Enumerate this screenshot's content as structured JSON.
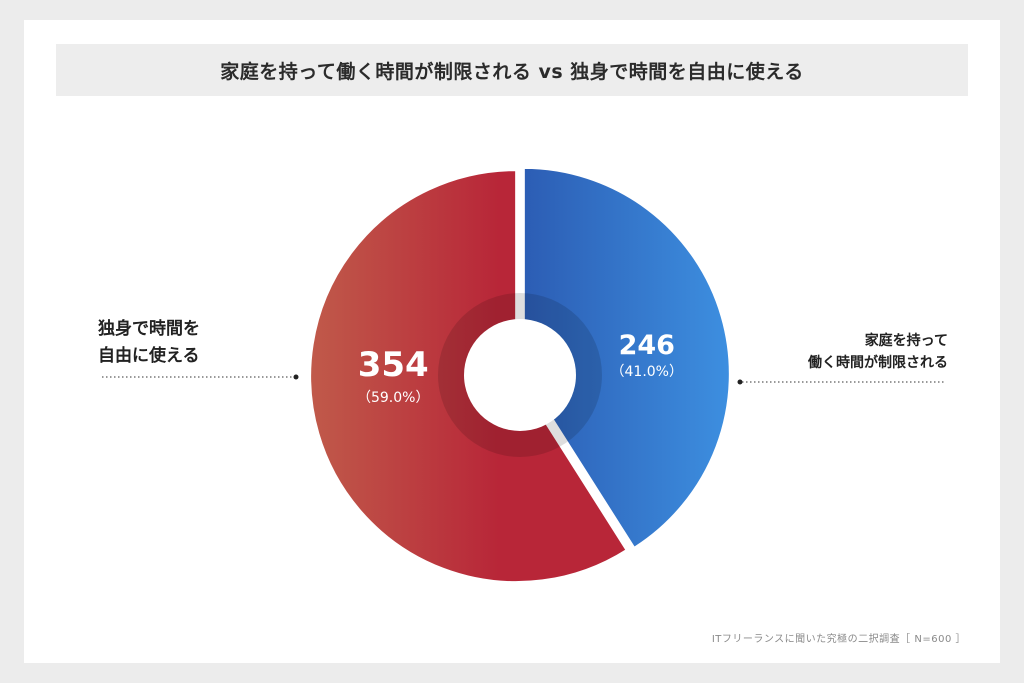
{
  "title": "家庭を持って働く時間が制限される vs 独身で時間を自由に使える",
  "source": "ITフリーランスに聞いた究極の二択調査［ N=600 ］",
  "labels": {
    "left_line1": "独身で時間を",
    "left_line2": "自由に使える",
    "right_line1": "家庭を持って",
    "right_line2": "働く時間が制限される"
  },
  "chart_data": {
    "type": "pie",
    "title": "家庭を持って働く時間が制限される vs 独身で時間を自由に使える",
    "total": 600,
    "slices": [
      {
        "label": "家庭を持って働く時間が制限される",
        "value": 246,
        "value_text": "246",
        "percent_text": "（41.0%）",
        "color_start": "#2c5db4",
        "color_end": "#3d8fe0"
      },
      {
        "label": "独身で時間を自由に使える",
        "value": 354,
        "value_text": "354",
        "percent_text": "（59.0%）",
        "color_start": "#c05a4a",
        "color_end": "#b82638"
      }
    ]
  }
}
